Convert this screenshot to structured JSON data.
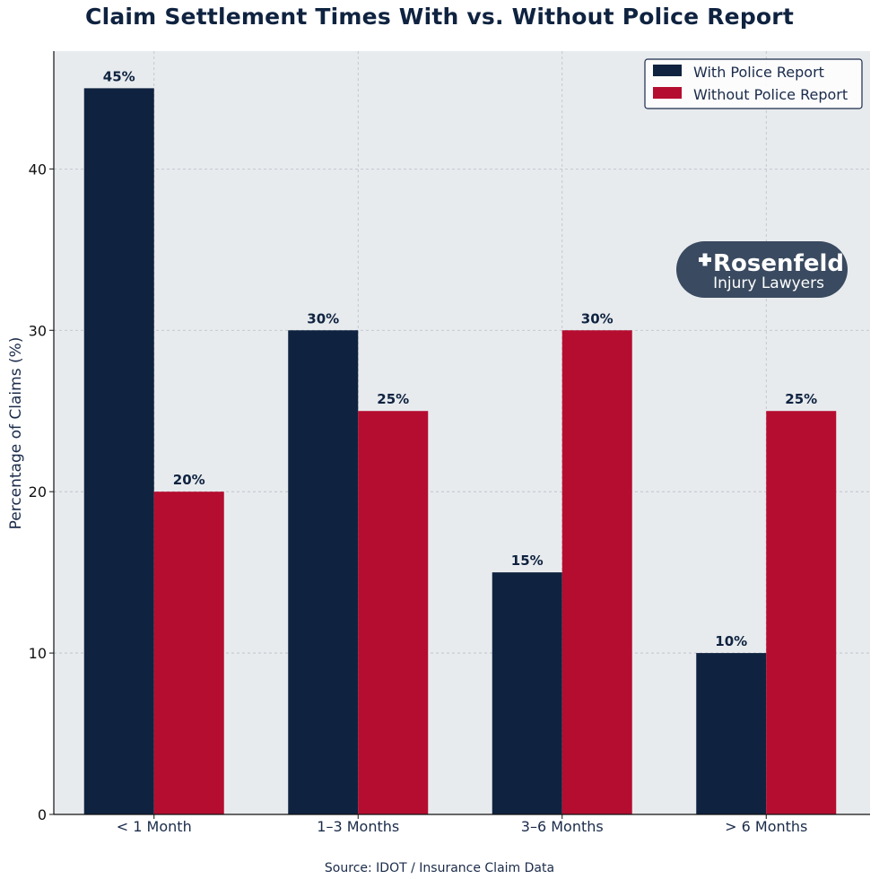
{
  "chart_data": {
    "type": "bar",
    "title": "Claim Settlement Times With vs. Without Police Report",
    "ylabel": "Percentage of Claims (%)",
    "xlabel": "",
    "categories": [
      "< 1 Month",
      "1–3 Months",
      "3–6 Months",
      "> 6 Months"
    ],
    "series": [
      {
        "name": "With Police Report",
        "values": [
          45,
          30,
          15,
          10
        ],
        "color": "#0f2340",
        "labels": [
          "45%",
          "30%",
          "15%",
          "10%"
        ]
      },
      {
        "name": "Without Police Report",
        "values": [
          20,
          25,
          30,
          25
        ],
        "color": "#b50d30",
        "labels": [
          "20%",
          "25%",
          "30%",
          "25%"
        ]
      }
    ],
    "ylim": [
      0,
      47.3
    ],
    "yticks": [
      0,
      10,
      20,
      30,
      40
    ],
    "grid": true,
    "legend": "top-right",
    "source": "Source: IDOT / Insurance Claim Data",
    "plot_background": "#e8ebee"
  },
  "logo": {
    "line1": "Rosenfeld",
    "line2": "Injury Lawyers",
    "color": "#3a4a60"
  }
}
